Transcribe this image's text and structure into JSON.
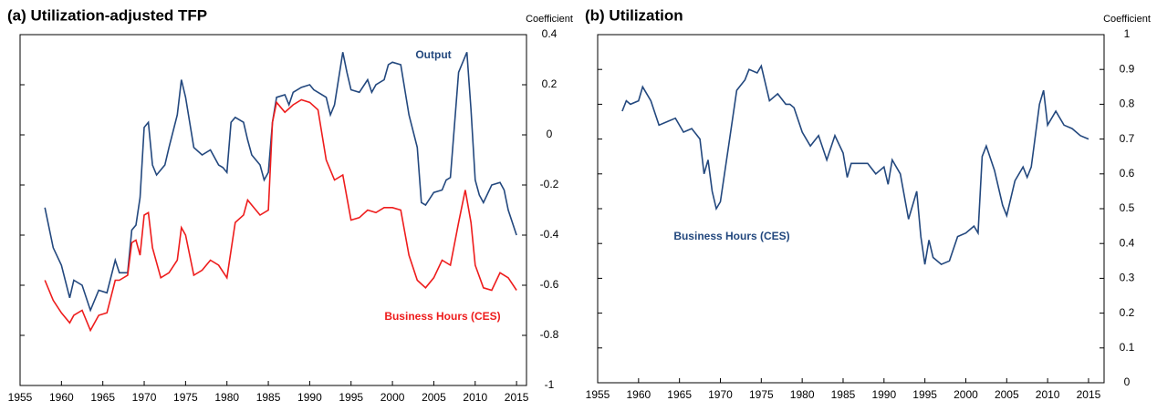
{
  "chart_data": [
    {
      "type": "line",
      "title": "(a) Utilization-adjusted TFP",
      "y_label": "Coefficient",
      "xlim": [
        1955,
        2016.2
      ],
      "xticks": [
        1955,
        1960,
        1965,
        1970,
        1975,
        1980,
        1985,
        1990,
        1995,
        2000,
        2005,
        2010,
        2015
      ],
      "ylim": [
        -1,
        0.4
      ],
      "yticks": [
        -1,
        -0.8,
        -0.6,
        -0.4,
        -0.2,
        0,
        0.2,
        0.4
      ],
      "series": [
        {
          "name": "Output",
          "color": "#23487e",
          "x": [
            1958,
            1959,
            1960,
            1961,
            1961.5,
            1962.5,
            1963.5,
            1964.5,
            1965.5,
            1966.5,
            1967,
            1968,
            1968.5,
            1969,
            1969.5,
            1970,
            1970.5,
            1971,
            1971.5,
            1972.5,
            1973,
            1974,
            1974.5,
            1975,
            1976,
            1977,
            1978,
            1979,
            1979.5,
            1980,
            1980.5,
            1981,
            1982,
            1982.5,
            1983,
            1984,
            1984.5,
            1985,
            1985.5,
            1986,
            1987,
            1987.5,
            1988,
            1989,
            1990,
            1990.5,
            1991,
            1992,
            1992.5,
            1993,
            1994,
            1994.5,
            1995,
            1996,
            1997,
            1997.5,
            1998,
            1999,
            1999.5,
            2000,
            2001,
            2002,
            2003,
            2003.5,
            2004,
            2005,
            2006,
            2006.5,
            2007,
            2008,
            2009,
            2009.5,
            2010,
            2010.5,
            2011,
            2012,
            2013,
            2013.5,
            2014,
            2015
          ],
          "values": [
            -0.29,
            -0.45,
            -0.52,
            -0.65,
            -0.58,
            -0.6,
            -0.7,
            -0.62,
            -0.63,
            -0.5,
            -0.55,
            -0.55,
            -0.38,
            -0.36,
            -0.25,
            0.03,
            0.05,
            -0.12,
            -0.16,
            -0.12,
            -0.05,
            0.08,
            0.22,
            0.15,
            -0.05,
            -0.08,
            -0.06,
            -0.12,
            -0.13,
            -0.15,
            0.05,
            0.07,
            0.05,
            -0.02,
            -0.08,
            -0.12,
            -0.18,
            -0.15,
            0.05,
            0.15,
            0.16,
            0.12,
            0.17,
            0.19,
            0.2,
            0.18,
            0.17,
            0.15,
            0.08,
            0.12,
            0.33,
            0.25,
            0.18,
            0.17,
            0.22,
            0.17,
            0.2,
            0.22,
            0.28,
            0.29,
            0.28,
            0.08,
            -0.05,
            -0.27,
            -0.28,
            -0.23,
            -0.22,
            -0.18,
            -0.17,
            0.25,
            0.33,
            0.1,
            -0.18,
            -0.24,
            -0.27,
            -0.2,
            -0.19,
            -0.22,
            -0.3,
            -0.4
          ]
        },
        {
          "name": "Business Hours (CES)",
          "color": "#ee1c1c",
          "x": [
            1958,
            1959,
            1960,
            1961,
            1961.5,
            1962.5,
            1963.5,
            1964.5,
            1965.5,
            1966.5,
            1967,
            1968,
            1968.5,
            1969,
            1969.5,
            1970,
            1970.5,
            1971,
            1972,
            1973,
            1974,
            1974.5,
            1975,
            1976,
            1977,
            1978,
            1979,
            1980,
            1981,
            1982,
            1982.5,
            1983,
            1984,
            1985,
            1985.5,
            1986,
            1987,
            1988,
            1989,
            1990,
            1991,
            1992,
            1993,
            1994,
            1995,
            1996,
            1997,
            1998,
            1999,
            2000,
            2001,
            2002,
            2003,
            2004,
            2005,
            2006,
            2007,
            2008,
            2008.8,
            2009.5,
            2010,
            2011,
            2012,
            2013,
            2014,
            2015
          ],
          "values": [
            -0.58,
            -0.66,
            -0.71,
            -0.75,
            -0.72,
            -0.7,
            -0.78,
            -0.72,
            -0.71,
            -0.58,
            -0.58,
            -0.56,
            -0.43,
            -0.42,
            -0.48,
            -0.32,
            -0.31,
            -0.45,
            -0.57,
            -0.55,
            -0.5,
            -0.37,
            -0.4,
            -0.56,
            -0.54,
            -0.5,
            -0.52,
            -0.57,
            -0.35,
            -0.32,
            -0.26,
            -0.28,
            -0.32,
            -0.3,
            0.05,
            0.13,
            0.09,
            0.12,
            0.14,
            0.13,
            0.1,
            -0.1,
            -0.18,
            -0.16,
            -0.34,
            -0.33,
            -0.3,
            -0.31,
            -0.29,
            -0.29,
            -0.3,
            -0.48,
            -0.58,
            -0.61,
            -0.57,
            -0.5,
            -0.52,
            -0.35,
            -0.22,
            -0.35,
            -0.52,
            -0.61,
            -0.62,
            -0.55,
            -0.57,
            -0.62
          ]
        }
      ]
    },
    {
      "type": "line",
      "title": "(b) Utilization",
      "y_label": "Coefficient",
      "xlim": [
        1955,
        2016.9
      ],
      "xticks": [
        1955,
        1960,
        1965,
        1970,
        1975,
        1980,
        1985,
        1990,
        1995,
        2000,
        2005,
        2010,
        2015
      ],
      "ylim": [
        0,
        1
      ],
      "yticks": [
        0,
        0.1,
        0.2,
        0.3,
        0.4,
        0.5,
        0.6,
        0.7,
        0.8,
        0.9,
        1
      ],
      "series": [
        {
          "name": "Business Hours (CES)",
          "color": "#23487e",
          "x": [
            1958,
            1958.5,
            1959,
            1960,
            1960.5,
            1961.5,
            1962.5,
            1963.5,
            1964.5,
            1965.5,
            1966.5,
            1967.5,
            1968,
            1968.5,
            1969,
            1969.5,
            1970,
            1971,
            1972,
            1973,
            1973.5,
            1974.5,
            1975,
            1976,
            1977,
            1978,
            1978.5,
            1979,
            1980,
            1981,
            1982,
            1983,
            1984,
            1985,
            1985.5,
            1986,
            1987,
            1988,
            1989,
            1990,
            1990.5,
            1991,
            1992,
            1993,
            1994,
            1994.5,
            1995,
            1995.5,
            1996,
            1997,
            1998,
            1999,
            2000,
            2001,
            2001.5,
            2002,
            2002.5,
            2003.5,
            2004.5,
            2005,
            2006,
            2007,
            2007.5,
            2008,
            2009,
            2009.5,
            2010,
            2011,
            2012,
            2013,
            2014,
            2015
          ],
          "values": [
            0.78,
            0.81,
            0.8,
            0.81,
            0.85,
            0.81,
            0.74,
            0.75,
            0.76,
            0.72,
            0.73,
            0.7,
            0.6,
            0.64,
            0.55,
            0.5,
            0.52,
            0.68,
            0.84,
            0.87,
            0.9,
            0.89,
            0.91,
            0.81,
            0.83,
            0.8,
            0.8,
            0.79,
            0.72,
            0.68,
            0.71,
            0.64,
            0.71,
            0.66,
            0.59,
            0.63,
            0.63,
            0.63,
            0.6,
            0.62,
            0.57,
            0.64,
            0.6,
            0.47,
            0.55,
            0.42,
            0.34,
            0.41,
            0.36,
            0.34,
            0.35,
            0.42,
            0.43,
            0.45,
            0.43,
            0.65,
            0.68,
            0.61,
            0.51,
            0.48,
            0.58,
            0.62,
            0.59,
            0.62,
            0.8,
            0.84,
            0.74,
            0.78,
            0.74,
            0.73,
            0.71,
            0.7
          ]
        }
      ]
    }
  ]
}
